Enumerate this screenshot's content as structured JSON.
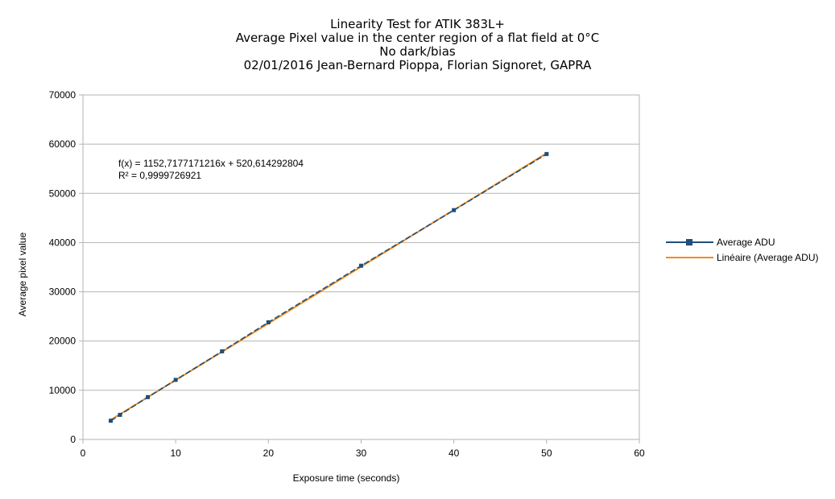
{
  "chart_data": {
    "type": "scatter",
    "title_lines": [
      "Linearity Test for ATIK 383L+",
      "Average Pixel value in the center region of a flat field at 0°C",
      "No dark/bias",
      "02/01/2016 Jean-Bernard Pioppa, Florian Signoret, GAPRA"
    ],
    "xlabel": "Exposure time (seconds)",
    "ylabel": "Average pixel value",
    "xlim": [
      0,
      60
    ],
    "ylim": [
      0,
      70000
    ],
    "x_ticks": [
      0,
      10,
      20,
      30,
      40,
      50,
      60
    ],
    "y_ticks": [
      0,
      10000,
      20000,
      30000,
      40000,
      50000,
      60000,
      70000
    ],
    "grid": "horizontal",
    "legend_position": "right",
    "series": [
      {
        "name": "Average ADU",
        "color": "#1f4e79",
        "marker": "square",
        "x": [
          3,
          4,
          7,
          10,
          15,
          20,
          30,
          40,
          50
        ],
        "y": [
          3800,
          5000,
          8600,
          12100,
          17900,
          23800,
          35300,
          46600,
          58000
        ]
      }
    ],
    "trendline": {
      "name": "Linéaire (Average ADU)",
      "color": "#f28c1c",
      "slope": 1152.7177171216,
      "intercept": 520.614292804,
      "equation_text": "f(x) = 1152,7177171216x + 520,614292804",
      "r2_text": "R² = 0,9999726921"
    }
  }
}
